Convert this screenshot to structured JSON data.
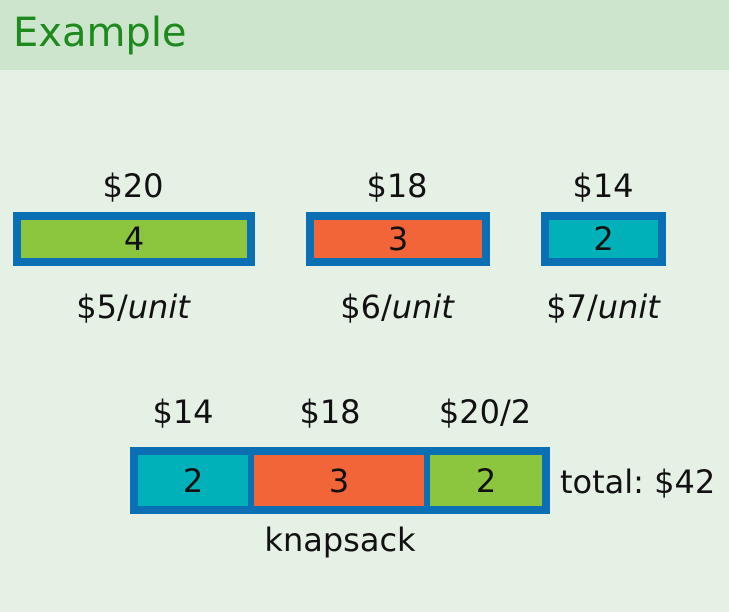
{
  "header": {
    "title": "Example"
  },
  "colors": {
    "green": "#8cc63f",
    "orange": "#f26538",
    "teal": "#00b1b9",
    "blue_border": "#0a6fb3"
  },
  "items": [
    {
      "price": "$20",
      "qty": "4",
      "rate_num": "$5/",
      "rate_unit": "unit",
      "color": "#8cc63f"
    },
    {
      "price": "$18",
      "qty": "3",
      "rate_num": "$6/",
      "rate_unit": "unit",
      "color": "#f26538"
    },
    {
      "price": "$14",
      "qty": "2",
      "rate_num": "$7/",
      "rate_unit": "unit",
      "color": "#00b1b9"
    }
  ],
  "knapsack": {
    "segments": [
      {
        "price": "$14",
        "qty": "2",
        "color": "#00b1b9"
      },
      {
        "price": "$18",
        "qty": "3",
        "color": "#f26538"
      },
      {
        "price": "$20/2",
        "qty": "2",
        "color": "#8cc63f"
      }
    ],
    "total": "total:  $42",
    "label": "knapsack"
  }
}
